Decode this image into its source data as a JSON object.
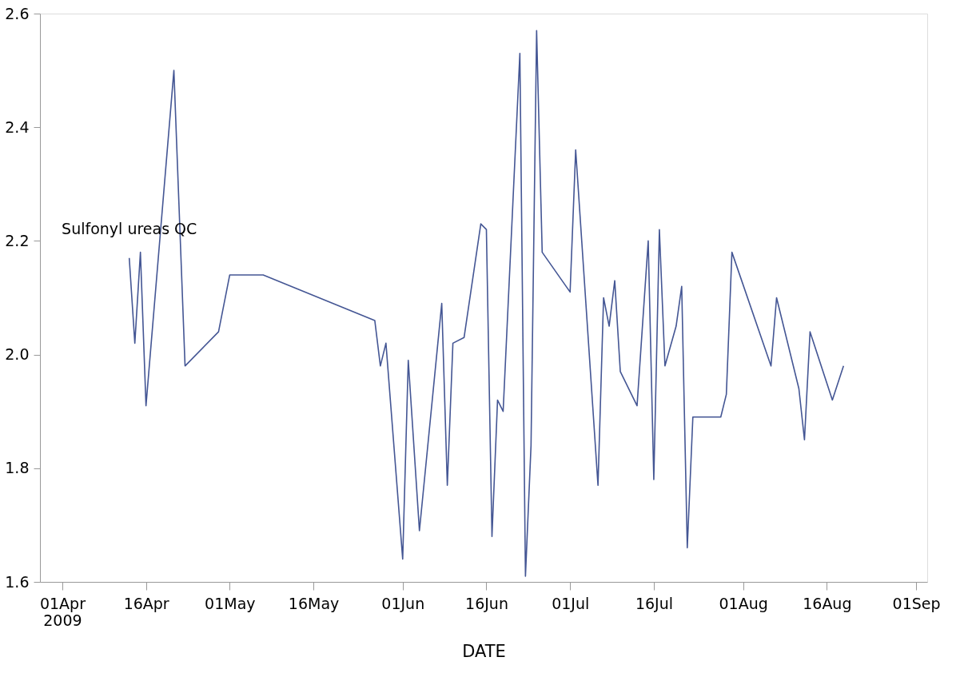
{
  "chart_data": {
    "type": "line",
    "xlabel": "DATE",
    "x": [
      "2009-04-13",
      "2009-04-14",
      "2009-04-15",
      "2009-04-16",
      "2009-04-21",
      "2009-04-23",
      "2009-04-29",
      "2009-05-01",
      "2009-05-07",
      "2009-05-27",
      "2009-05-28",
      "2009-05-29",
      "2009-06-01",
      "2009-06-02",
      "2009-06-04",
      "2009-06-08",
      "2009-06-09",
      "2009-06-10",
      "2009-06-12",
      "2009-06-15",
      "2009-06-16",
      "2009-06-17",
      "2009-06-18",
      "2009-06-19",
      "2009-06-22",
      "2009-06-23",
      "2009-06-24",
      "2009-06-25",
      "2009-06-26",
      "2009-07-01",
      "2009-07-02",
      "2009-07-06",
      "2009-07-07",
      "2009-07-08",
      "2009-07-09",
      "2009-07-10",
      "2009-07-13",
      "2009-07-15",
      "2009-07-16",
      "2009-07-17",
      "2009-07-18",
      "2009-07-20",
      "2009-07-21",
      "2009-07-22",
      "2009-07-23",
      "2009-07-28",
      "2009-07-29",
      "2009-07-30",
      "2009-08-06",
      "2009-08-07",
      "2009-08-11",
      "2009-08-12",
      "2009-08-13",
      "2009-08-17",
      "2009-08-19"
    ],
    "series": [
      {
        "name": "Sulfonyl ureas QC",
        "color": "#445694",
        "values": [
          2.17,
          2.02,
          2.18,
          1.91,
          2.5,
          1.98,
          2.04,
          2.14,
          2.14,
          2.06,
          1.98,
          2.02,
          1.64,
          1.99,
          1.69,
          2.09,
          1.77,
          2.02,
          2.03,
          2.23,
          2.22,
          1.68,
          1.92,
          1.9,
          2.53,
          1.61,
          1.84,
          2.57,
          2.18,
          2.11,
          2.36,
          1.77,
          2.1,
          2.05,
          2.13,
          1.97,
          1.91,
          2.2,
          1.78,
          2.22,
          1.98,
          2.05,
          2.12,
          1.66,
          1.89,
          1.89,
          1.93,
          2.18,
          1.98,
          2.1,
          1.94,
          1.85,
          2.04,
          1.92,
          1.98
        ]
      }
    ],
    "xlim": [
      "2009-03-28",
      "2009-09-03"
    ],
    "xticks": [
      {
        "value": "2009-04-01",
        "label": "01Apr\n2009"
      },
      {
        "value": "2009-04-16",
        "label": "16Apr"
      },
      {
        "value": "2009-05-01",
        "label": "01May"
      },
      {
        "value": "2009-05-16",
        "label": "16May"
      },
      {
        "value": "2009-06-01",
        "label": "01Jun"
      },
      {
        "value": "2009-06-16",
        "label": "16Jun"
      },
      {
        "value": "2009-07-01",
        "label": "01Jul"
      },
      {
        "value": "2009-07-16",
        "label": "16Jul"
      },
      {
        "value": "2009-08-01",
        "label": "01Aug"
      },
      {
        "value": "2009-08-16",
        "label": "16Aug"
      },
      {
        "value": "2009-09-01",
        "label": "01Sep"
      }
    ],
    "ylim": [
      1.6,
      2.6
    ],
    "yticks": [
      1.6,
      1.8,
      {
        "value": 2.0,
        "label": "2.0"
      },
      2.2,
      2.4,
      2.6
    ],
    "grid": false,
    "marker": "none",
    "line_style": "solid"
  }
}
